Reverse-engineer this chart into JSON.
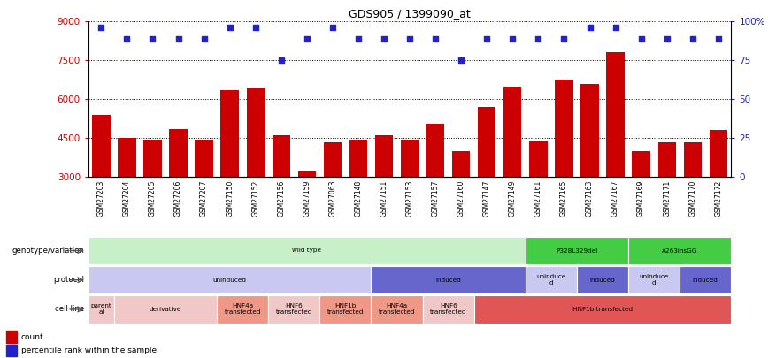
{
  "title": "GDS905 / 1399090_at",
  "samples": [
    "GSM27203",
    "GSM27204",
    "GSM27205",
    "GSM27206",
    "GSM27207",
    "GSM27150",
    "GSM27152",
    "GSM27156",
    "GSM27159",
    "GSM27063",
    "GSM27148",
    "GSM27151",
    "GSM27153",
    "GSM27157",
    "GSM27160",
    "GSM27147",
    "GSM27149",
    "GSM27161",
    "GSM27165",
    "GSM27163",
    "GSM27167",
    "GSM27169",
    "GSM27171",
    "GSM27170",
    "GSM27172"
  ],
  "counts": [
    5400,
    4500,
    4450,
    4850,
    4450,
    6350,
    6450,
    4600,
    3200,
    4350,
    4450,
    4600,
    4450,
    5050,
    4000,
    5700,
    6500,
    4400,
    6750,
    6600,
    7800,
    4000,
    4350,
    4350,
    4800
  ],
  "percentile": [
    96,
    89,
    89,
    89,
    89,
    96,
    96,
    75,
    89,
    96,
    89,
    89,
    89,
    89,
    75,
    89,
    89,
    89,
    89,
    96,
    96,
    89,
    89,
    89,
    89
  ],
  "ylim": [
    3000,
    9000
  ],
  "yticks": [
    3000,
    4500,
    6000,
    7500,
    9000
  ],
  "right_yticks": [
    0,
    25,
    50,
    75,
    100
  ],
  "right_ylim": [
    0,
    100
  ],
  "bar_color": "#cc0000",
  "dot_color": "#2222cc",
  "background_color": "#ffffff",
  "tick_label_color_left": "#cc0000",
  "tick_label_color_right": "#2222cc",
  "xtick_bg_color": "#d8d8d8",
  "genotype_rows": [
    {
      "label": "wild type",
      "start": 0,
      "end": 17,
      "color": "#c8f0c8"
    },
    {
      "label": "P328L329del",
      "start": 17,
      "end": 21,
      "color": "#44cc44"
    },
    {
      "label": "A263insGG",
      "start": 21,
      "end": 25,
      "color": "#44cc44"
    }
  ],
  "protocol_rows": [
    {
      "label": "uninduced",
      "start": 0,
      "end": 11,
      "color": "#c8c8f0"
    },
    {
      "label": "induced",
      "start": 11,
      "end": 17,
      "color": "#6666cc"
    },
    {
      "label": "uninduce\nd",
      "start": 17,
      "end": 19,
      "color": "#c8c8f0"
    },
    {
      "label": "induced",
      "start": 19,
      "end": 21,
      "color": "#6666cc"
    },
    {
      "label": "uninduce\nd",
      "start": 21,
      "end": 23,
      "color": "#c8c8f0"
    },
    {
      "label": "induced",
      "start": 23,
      "end": 25,
      "color": "#6666cc"
    }
  ],
  "cellline_rows": [
    {
      "label": "parent\nal",
      "start": 0,
      "end": 1,
      "color": "#f0c8c8"
    },
    {
      "label": "derivative",
      "start": 1,
      "end": 5,
      "color": "#f0c8c8"
    },
    {
      "label": "HNF4a\ntransfected",
      "start": 5,
      "end": 7,
      "color": "#f09888"
    },
    {
      "label": "HNF6\ntransfected",
      "start": 7,
      "end": 9,
      "color": "#f0c8c8"
    },
    {
      "label": "HNF1b\ntransfected",
      "start": 9,
      "end": 11,
      "color": "#f09888"
    },
    {
      "label": "HNF4a\ntransfected",
      "start": 11,
      "end": 13,
      "color": "#f09888"
    },
    {
      "label": "HNF6\ntransfected",
      "start": 13,
      "end": 15,
      "color": "#f0c8c8"
    },
    {
      "label": "HNF1b transfected",
      "start": 15,
      "end": 25,
      "color": "#e05555"
    }
  ]
}
